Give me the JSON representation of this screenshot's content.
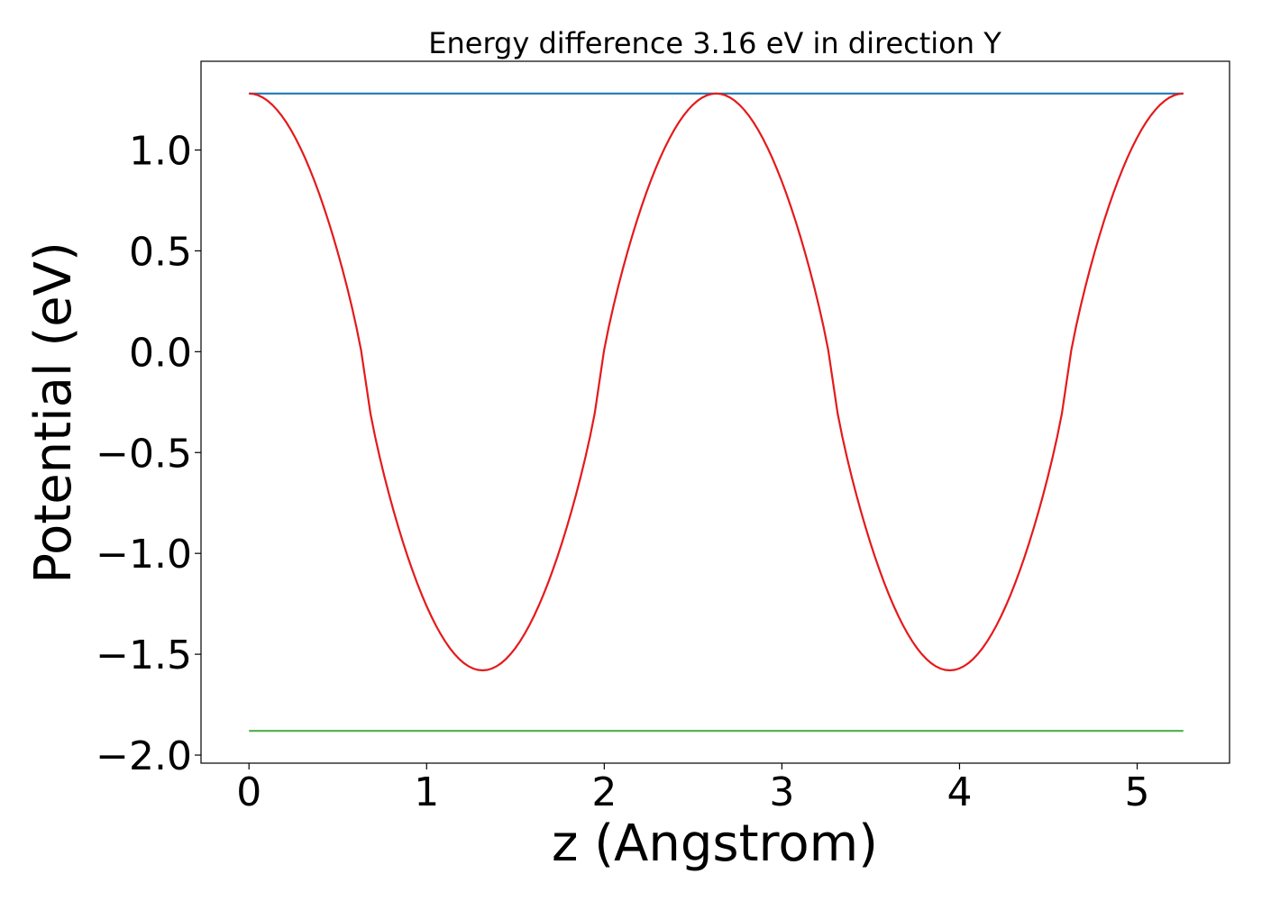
{
  "chart_data": {
    "type": "line",
    "title": "Energy difference 3.16 eV in direction Y",
    "xlabel": "z (Angstrom)",
    "ylabel": "Potential (eV)",
    "xlim": [
      -0.27,
      5.52
    ],
    "ylim": [
      -2.04,
      1.44
    ],
    "x_ticks": [
      0,
      1,
      2,
      3,
      4,
      5
    ],
    "x_tick_labels": [
      "0",
      "1",
      "2",
      "3",
      "4",
      "5"
    ],
    "y_ticks": [
      1.0,
      0.5,
      0.0,
      -0.5,
      -1.0,
      -1.5,
      -2.0
    ],
    "y_tick_labels": [
      "1.0",
      "0.5",
      "0.0",
      "−0.5",
      "−1.0",
      "−1.5",
      "−2.0"
    ],
    "grid": false,
    "legend": "none",
    "series": [
      {
        "color": "#1f77b4",
        "style": "constant",
        "x": [
          0,
          5.26
        ],
        "y": [
          1.28,
          1.28
        ]
      },
      {
        "color": "#e41a1c",
        "style": "periodic-wells",
        "period": 2.63,
        "x_range": [
          0,
          5.26
        ],
        "max": 1.28,
        "min": -1.58,
        "minima_at": [
          1.32,
          3.96
        ],
        "maxima_at": [
          0,
          2.65,
          5.26
        ]
      },
      {
        "color": "#4daf4a",
        "style": "constant",
        "x": [
          0,
          5.26
        ],
        "y": [
          -1.88,
          -1.88
        ]
      }
    ]
  }
}
